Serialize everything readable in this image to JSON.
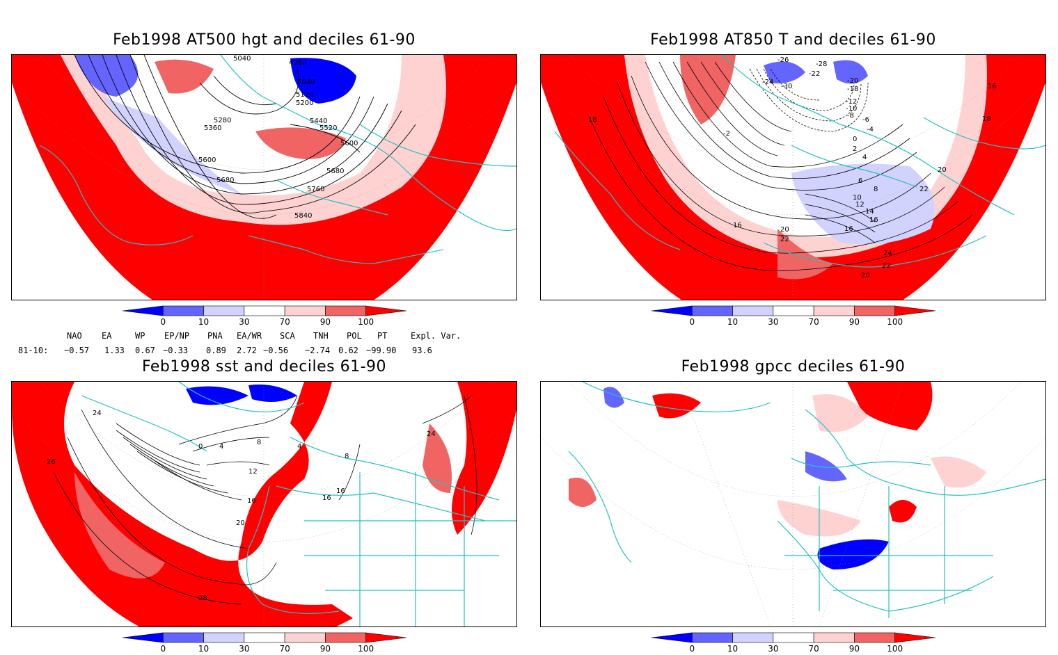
{
  "panels": [
    {
      "title": "Feb1998 AT500 hgt and deciles 61-90",
      "contour_labels": [
        "5040",
        "4960",
        "5040",
        "5120",
        "5200",
        "5280",
        "5360",
        "5440",
        "5520",
        "5600",
        "5600",
        "5680",
        "5680",
        "5760",
        "5840"
      ]
    },
    {
      "title": "Feb1998 AT850 T and deciles 61-90",
      "contour_labels": [
        "-26",
        "-28",
        "-24",
        "-30",
        "-22",
        "-20",
        "-18",
        "-12",
        "-10",
        "-8",
        "-6",
        "-4",
        "-2",
        "0",
        "2",
        "4",
        "6",
        "8",
        "10",
        "12",
        "14",
        "16",
        "16",
        "16",
        "18",
        "18",
        "16",
        "20",
        "20",
        "22",
        "22",
        "24",
        "22",
        "20"
      ]
    },
    {
      "title": "Feb1998 sst and deciles 61-90",
      "contour_labels": [
        "24",
        "0",
        "4",
        "8",
        "12",
        "16",
        "20",
        "28",
        "24",
        "26",
        "16",
        "16",
        "8",
        "4"
      ]
    },
    {
      "title": "Feb1998 gpcc deciles 61-90",
      "contour_labels": []
    }
  ],
  "colorbar": {
    "tick_labels": [
      "0",
      "10",
      "30",
      "70",
      "90",
      "100"
    ],
    "colors": [
      "#0000ff",
      "#6464ff",
      "#d2d2ff",
      "#ffffff",
      "#ffd2d2",
      "#f06464",
      "#ff0000"
    ]
  },
  "indices": {
    "row_label": "81-10:",
    "columns": [
      {
        "name": "NAO",
        "value": "−0.57"
      },
      {
        "name": "EA",
        "value": "1.33"
      },
      {
        "name": "WP",
        "value": "0.67"
      },
      {
        "name": "EP/NP",
        "value": "−0.33"
      },
      {
        "name": "PNA",
        "value": "0.89"
      },
      {
        "name": "EA/WR",
        "value": "2.72"
      },
      {
        "name": "SCA",
        "value": "−0.56"
      },
      {
        "name": "TNH",
        "value": "−2.74"
      },
      {
        "name": "POL",
        "value": "0.62"
      },
      {
        "name": "PT",
        "value": "−99.90"
      },
      {
        "name": "Expl. Var.",
        "value": "93.6"
      }
    ]
  },
  "style": {
    "coast_color": "#22c2c2",
    "red": "#ff0000",
    "mid_red": "#f06464",
    "light_red": "#ffd2d2",
    "blue": "#0000ff",
    "mid_blue": "#6464ff",
    "light_blue": "#d2d2ff"
  }
}
